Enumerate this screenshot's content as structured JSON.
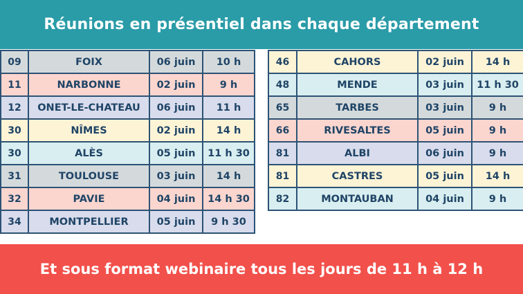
{
  "header": {
    "title": "Réunions en présentiel dans chaque département"
  },
  "footer": {
    "text": "Et sous format webinaire tous les jours de 11 h à 12 h"
  },
  "left_table": [
    {
      "dept": "09",
      "city": "FOIX",
      "date": "06 juin",
      "time": "10 h",
      "color": "#d4dadc"
    },
    {
      "dept": "11",
      "city": "NARBONNE",
      "date": "02 juin",
      "time": "9 h",
      "color": "#fbd6cf"
    },
    {
      "dept": "12",
      "city": "ONET-LE-CHATEAU",
      "date": "06 juin",
      "time": "11 h",
      "color": "#d8dcec"
    },
    {
      "dept": "30",
      "city": "NÎMES",
      "date": "02 juin",
      "time": "14 h",
      "color": "#fdf4d6"
    },
    {
      "dept": "30",
      "city": "ALÈS",
      "date": "05 juin",
      "time": "11 h 30",
      "color": "#d9eef0"
    },
    {
      "dept": "31",
      "city": "TOULOUSE",
      "date": "03 juin",
      "time": "14 h",
      "color": "#d4dadc"
    },
    {
      "dept": "32",
      "city": "PAVIE",
      "date": "04 juin",
      "time": "14 h 30",
      "color": "#fbd6cf"
    },
    {
      "dept": "34",
      "city": "MONTPELLIER",
      "date": "05 juin",
      "time": "9 h 30",
      "color": "#d8dcec"
    }
  ],
  "right_table": [
    {
      "dept": "46",
      "city": "CAHORS",
      "date": "02 juin",
      "time": "14 h",
      "color": "#fdf4d6"
    },
    {
      "dept": "48",
      "city": "MENDE",
      "date": "03 juin",
      "time": "11 h 30",
      "color": "#d9eef0"
    },
    {
      "dept": "65",
      "city": "TARBES",
      "date": "03 juin",
      "time": "9 h",
      "color": "#d4dadc"
    },
    {
      "dept": "66",
      "city": "RIVESALTES",
      "date": "05 juin",
      "time": "9 h",
      "color": "#fbd6cf"
    },
    {
      "dept": "81",
      "city": "ALBI",
      "date": "06 juin",
      "time": "9 h",
      "color": "#d8dcec"
    },
    {
      "dept": "81",
      "city": "CASTRES",
      "date": "05 juin",
      "time": "14 h",
      "color": "#fdf4d6"
    },
    {
      "dept": "82",
      "city": "MONTAUBAN",
      "date": "04 juin",
      "time": "9 h",
      "color": "#d9eef0"
    }
  ]
}
